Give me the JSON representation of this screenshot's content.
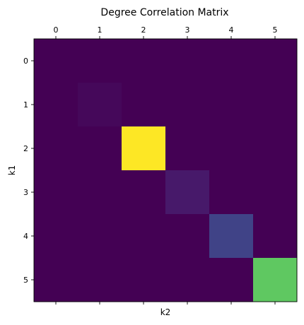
{
  "chart_data": {
    "type": "heatmap",
    "title": "Degree Correlation Matrix",
    "xlabel": "k2",
    "ylabel": "k1",
    "x_categories": [
      "0",
      "1",
      "2",
      "3",
      "4",
      "5"
    ],
    "y_categories": [
      "0",
      "1",
      "2",
      "3",
      "4",
      "5"
    ],
    "x_ticks_position": "top",
    "colormap": "viridis",
    "value_range": [
      0,
      1
    ],
    "grid": false,
    "values": [
      [
        0,
        0,
        0,
        0,
        0,
        0
      ],
      [
        0,
        0.02,
        0,
        0,
        0,
        0
      ],
      [
        0,
        0,
        1.0,
        0,
        0,
        0
      ],
      [
        0,
        0,
        0,
        0.07,
        0,
        0
      ],
      [
        0,
        0,
        0,
        0,
        0.2,
        0
      ],
      [
        0,
        0,
        0,
        0,
        0,
        0.75
      ]
    ]
  }
}
